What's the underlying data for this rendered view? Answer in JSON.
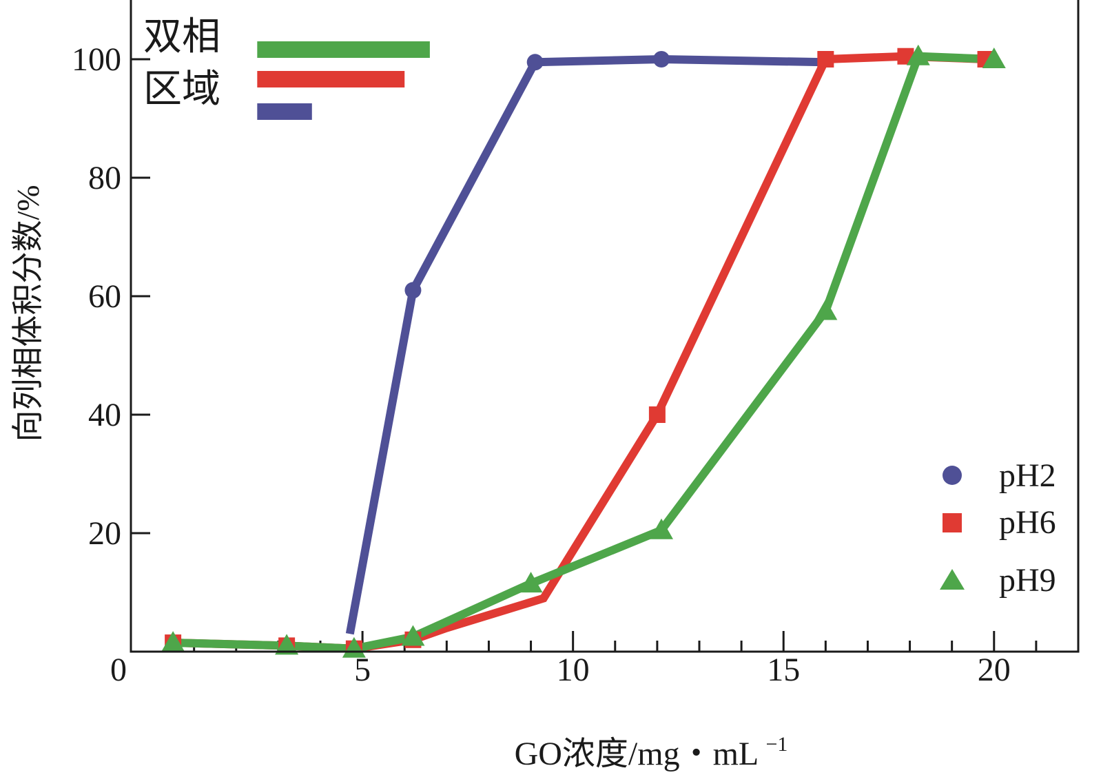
{
  "chart_data": {
    "type": "line",
    "xlabel": "GO浓度/mg・mL",
    "xlabel_sup": "−1",
    "ylabel": "向列相体积分数/%",
    "xlim": [
      -0.5,
      22
    ],
    "ylim": [
      0,
      110
    ],
    "origin_label": "0",
    "x_ticks": [
      5,
      10,
      15,
      20
    ],
    "x_tick_labels": [
      "5",
      "10",
      "15",
      "20"
    ],
    "x_minor_step": 1,
    "y_ticks": [
      20,
      40,
      60,
      80,
      100
    ],
    "y_tick_labels": [
      "20",
      "40",
      "60",
      "80",
      "100"
    ],
    "series": [
      {
        "name": "pH2",
        "color": "#4f5096",
        "marker": "circle",
        "x": [
          4.7,
          6.2,
          9.1,
          12.1,
          16.0
        ],
        "y": [
          3,
          61,
          99.5,
          100,
          99.5
        ],
        "marker_x": [
          6.2,
          9.1,
          12.1
        ],
        "marker_y": [
          61,
          99.5,
          100
        ]
      },
      {
        "name": "pH6",
        "color": "#e03a33",
        "marker": "square",
        "x": [
          0.5,
          3.2,
          4.8,
          6.2,
          7.0,
          9.3,
          12.0,
          16.0,
          17.9,
          19.8
        ],
        "y": [
          1.5,
          1,
          0.5,
          2,
          4,
          9,
          40,
          100,
          100.5,
          100
        ],
        "marker_x": [
          0.5,
          3.2,
          4.8,
          6.2,
          12.0,
          16.0,
          17.9,
          19.8
        ],
        "marker_y": [
          1.5,
          1,
          0.5,
          2,
          40,
          100,
          100.5,
          100
        ]
      },
      {
        "name": "pH9",
        "color": "#4ea64a",
        "marker": "triangle",
        "x": [
          0.5,
          3.2,
          4.8,
          6.2,
          9.0,
          12.1,
          16.0,
          18.2,
          20.0
        ],
        "y": [
          1.5,
          1,
          0.5,
          2.5,
          11.5,
          20.5,
          57.5,
          100.5,
          100
        ],
        "marker_x": [
          0.5,
          3.2,
          4.8,
          6.2,
          9.0,
          12.1,
          16.0,
          18.2,
          20.0
        ],
        "marker_y": [
          1.5,
          1,
          0.5,
          2.5,
          11.5,
          20.5,
          57.5,
          100.5,
          100
        ]
      }
    ],
    "legend": {
      "placement": "bottom-right",
      "entries": [
        "pH2",
        "pH6",
        "pH9"
      ]
    },
    "biphasic_legend": {
      "placement": "top-left",
      "label_line1": "双相",
      "label_line2": "区域",
      "bars": [
        {
          "series": "pH9",
          "color": "#4ea64a",
          "x_start": 2.5,
          "x_end": 6.6
        },
        {
          "series": "pH6",
          "color": "#e03a33",
          "x_start": 2.5,
          "x_end": 6.0
        },
        {
          "series": "pH2",
          "color": "#4f5096",
          "x_start": 2.5,
          "x_end": 3.8
        }
      ]
    }
  }
}
